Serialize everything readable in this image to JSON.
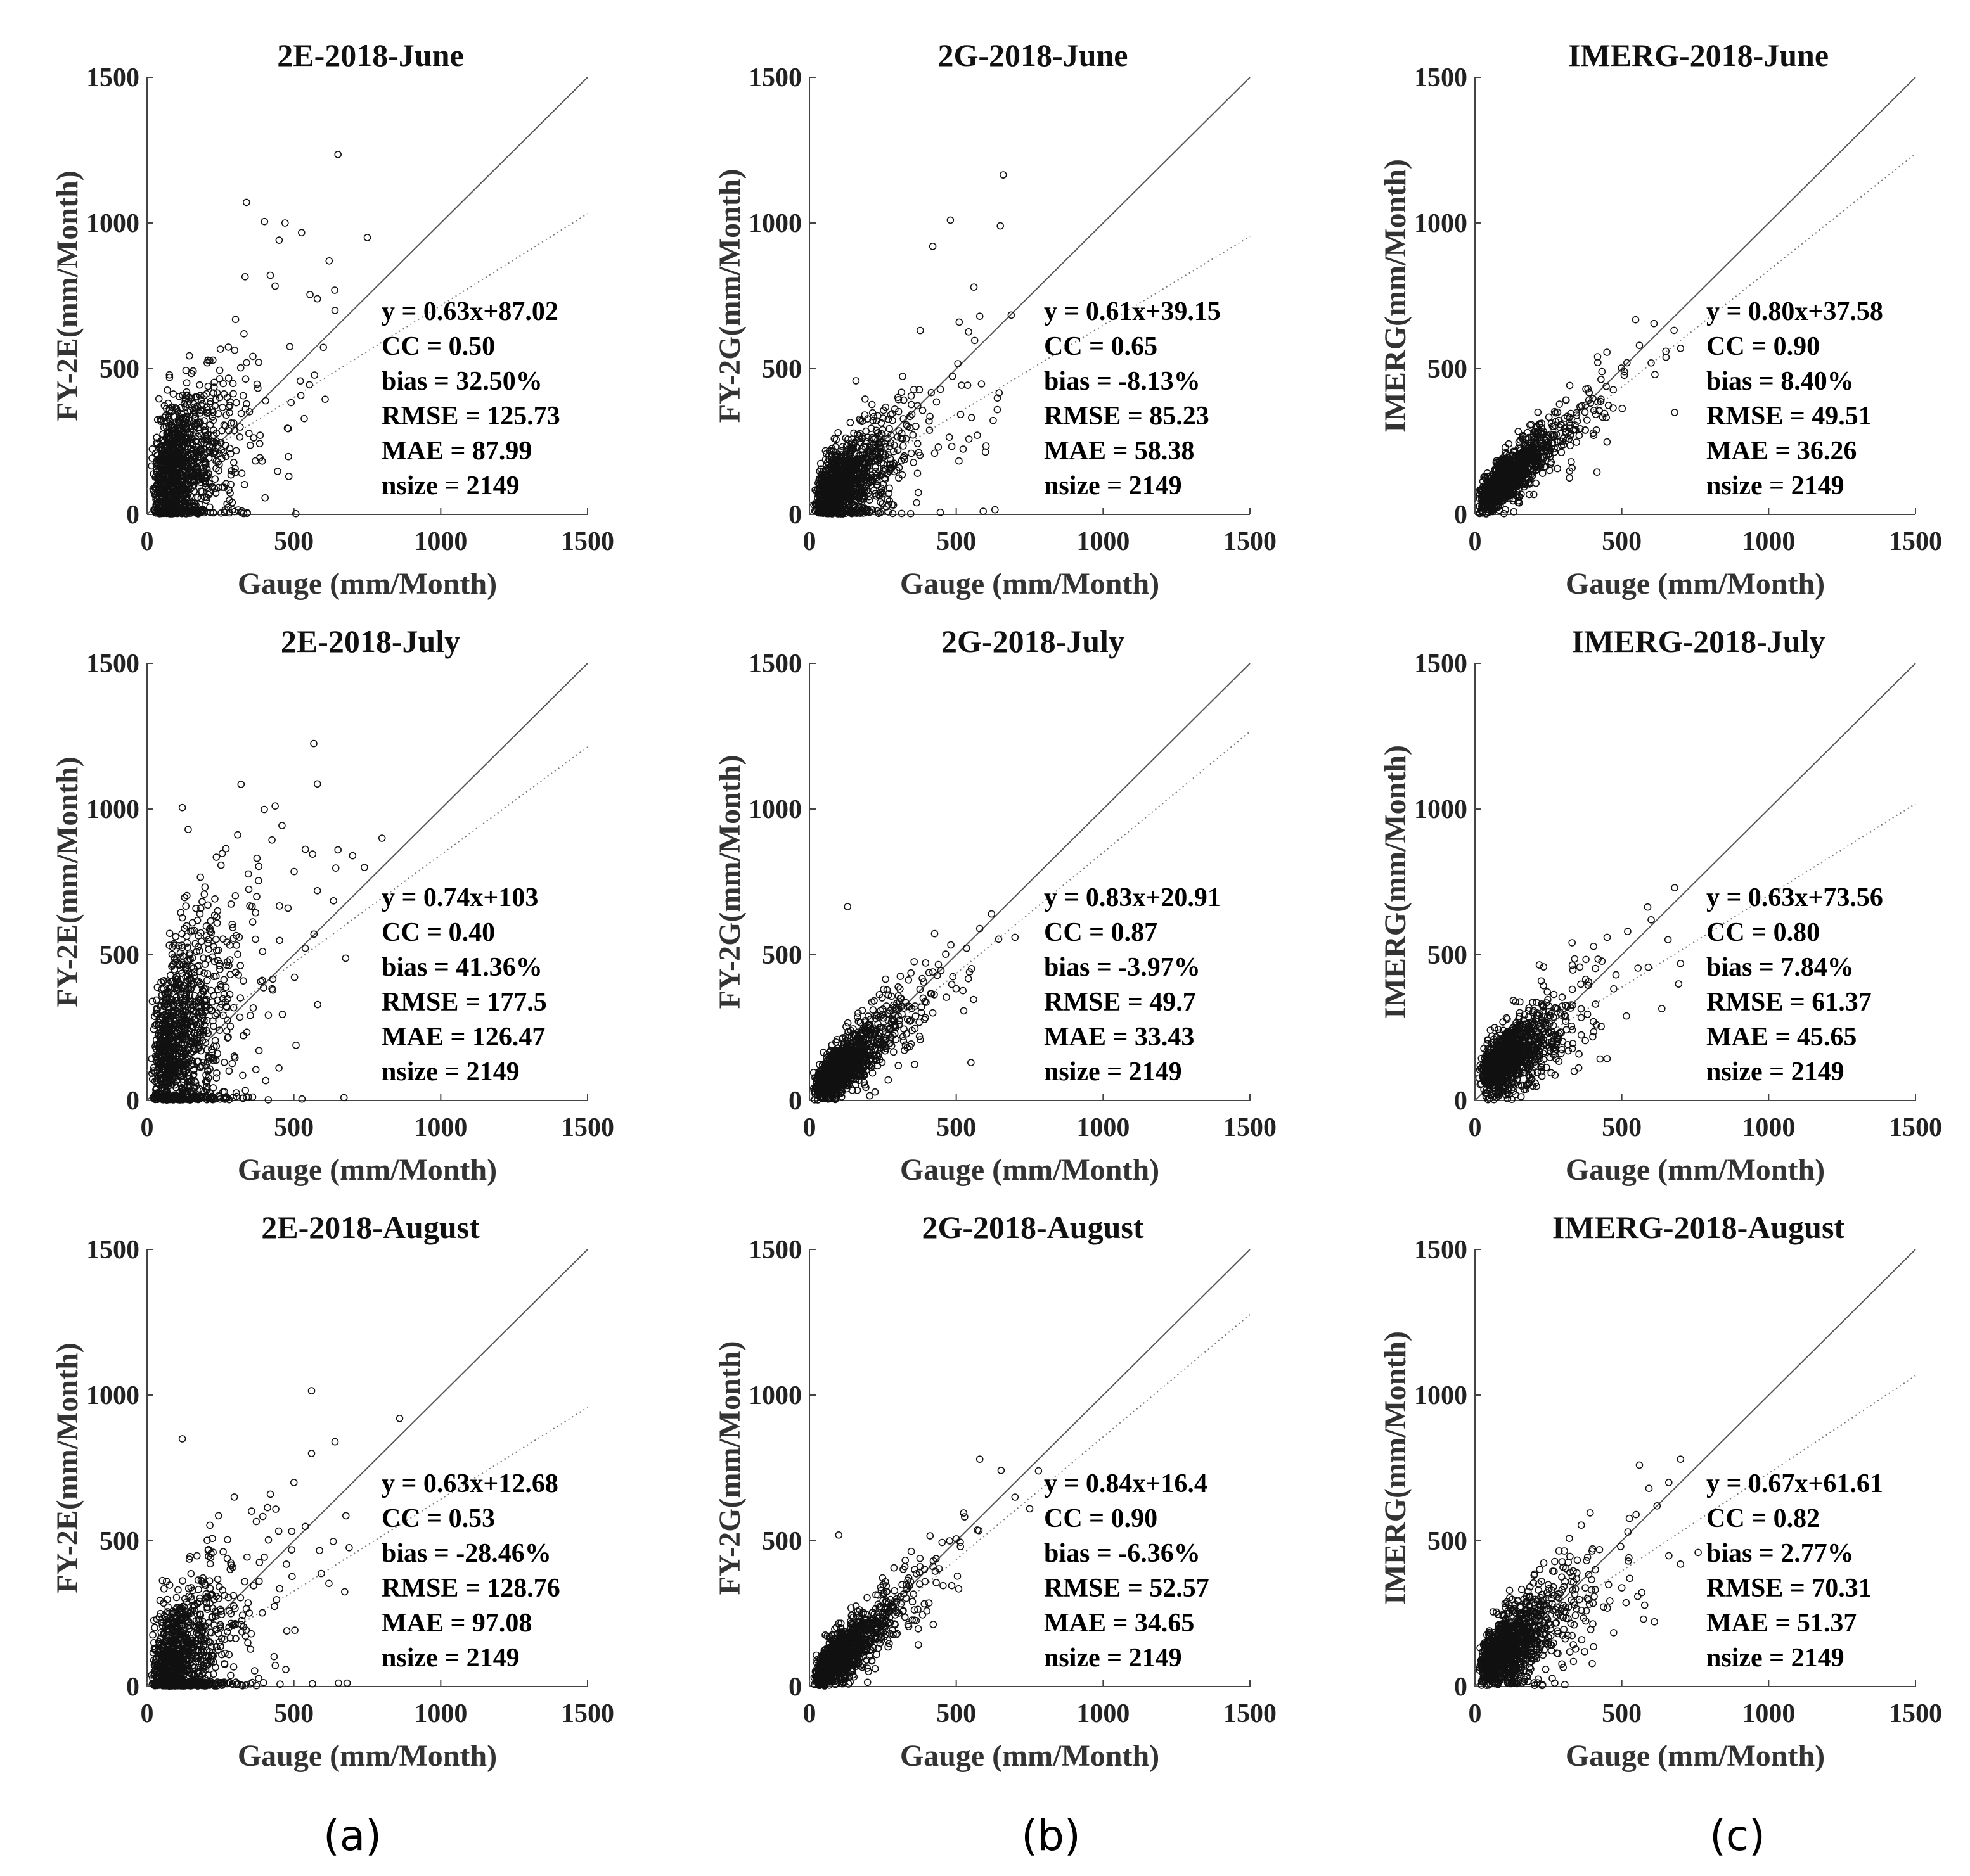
{
  "panel_labels": [
    "(a)",
    "(b)",
    "(c)"
  ],
  "chart_data": [
    {
      "type": "scatter",
      "title": "2E-2018-June",
      "xlabel": "Gauge (mm/Month)",
      "ylabel": "FY-2E(mm/Month)",
      "xlim": [
        0,
        1500
      ],
      "ylim": [
        0,
        1500
      ],
      "xticks": [
        "0",
        "500",
        "1000",
        "1500"
      ],
      "yticks": [
        "0",
        "500",
        "1000",
        "1500"
      ],
      "slope": 0.63,
      "intercept": 87.02,
      "cc": 0.5,
      "spread": 130,
      "stats": [
        "y = 0.63x+87.02",
        "CC = 0.50",
        "bias = 32.50%",
        "RMSE = 125.73",
        "MAE = 87.99",
        "nsize = 2149"
      ],
      "outliers": [
        [
          650,
          1235
        ],
        [
          400,
          1005
        ],
        [
          470,
          1000
        ],
        [
          750,
          950
        ],
        [
          620,
          870
        ],
        [
          580,
          740
        ],
        [
          640,
          700
        ],
        [
          330,
          620
        ]
      ]
    },
    {
      "type": "scatter",
      "title": "2G-2018-June",
      "xlabel": "Gauge (mm/Month)",
      "ylabel": "FY-2G(mm/Month)",
      "xlim": [
        0,
        1500
      ],
      "ylim": [
        0,
        1500
      ],
      "xticks": [
        "0",
        "500",
        "1000",
        "1500"
      ],
      "yticks": [
        "0",
        "500",
        "1000",
        "1500"
      ],
      "slope": 0.61,
      "intercept": 39.15,
      "cc": 0.65,
      "spread": 75,
      "stats": [
        "y = 0.61x+39.15",
        "CC = 0.65",
        "bias = -8.13%",
        "RMSE = 85.23",
        "MAE = 58.38",
        "nsize = 2149"
      ],
      "outliers": [
        [
          660,
          1165
        ],
        [
          480,
          1010
        ],
        [
          420,
          920
        ],
        [
          650,
          990
        ],
        [
          580,
          680
        ],
        [
          510,
          660
        ],
        [
          560,
          780
        ]
      ]
    },
    {
      "type": "scatter",
      "title": "IMERG-2018-June",
      "xlabel": "Gauge (mm/Month)",
      "ylabel": "IMERG(mm/Month)",
      "xlim": [
        0,
        1500
      ],
      "ylim": [
        0,
        1500
      ],
      "xticks": [
        "0",
        "500",
        "1000",
        "1500"
      ],
      "yticks": [
        "0",
        "500",
        "1000",
        "1500"
      ],
      "slope": 0.8,
      "intercept": 37.58,
      "cc": 0.9,
      "spread": 40,
      "stats": [
        "y = 0.80x+37.58",
        "CC = 0.90",
        "bias = 8.40%",
        "RMSE = 49.51",
        "MAE = 36.26",
        "nsize = 2149"
      ],
      "outliers": [
        [
          700,
          570
        ],
        [
          650,
          560
        ],
        [
          600,
          520
        ],
        [
          560,
          580
        ],
        [
          680,
          350
        ]
      ]
    },
    {
      "type": "scatter",
      "title": "2E-2018-July",
      "xlabel": "Gauge (mm/Month)",
      "ylabel": "FY-2E(mm/Month)",
      "xlim": [
        0,
        1500
      ],
      "ylim": [
        0,
        1500
      ],
      "xticks": [
        "0",
        "500",
        "1000",
        "1500"
      ],
      "yticks": [
        "0",
        "500",
        "1000",
        "1500"
      ],
      "slope": 0.74,
      "intercept": 103,
      "cc": 0.4,
      "spread": 175,
      "stats": [
        "y = 0.74x+103",
        "CC = 0.40",
        "bias = 41.36%",
        "RMSE = 177.5",
        "MAE = 126.47",
        "nsize = 2149"
      ],
      "outliers": [
        [
          320,
          1085
        ],
        [
          120,
          1005
        ],
        [
          140,
          930
        ],
        [
          800,
          900
        ],
        [
          700,
          840
        ],
        [
          650,
          860
        ],
        [
          580,
          720
        ],
        [
          480,
          660
        ],
        [
          740,
          800
        ]
      ]
    },
    {
      "type": "scatter",
      "title": "2G-2018-July",
      "xlabel": "Gauge (mm/Month)",
      "ylabel": "FY-2G(mm/Month)",
      "xlim": [
        0,
        1500
      ],
      "ylim": [
        0,
        1500
      ],
      "xticks": [
        "0",
        "500",
        "1000",
        "1500"
      ],
      "yticks": [
        "0",
        "500",
        "1000",
        "1500"
      ],
      "slope": 0.83,
      "intercept": 20.91,
      "cc": 0.87,
      "spread": 45,
      "stats": [
        "y = 0.83x+20.91",
        "CC = 0.87",
        "bias = -3.97%",
        "RMSE = 49.7",
        "MAE = 33.43",
        "nsize = 2149"
      ],
      "outliers": [
        [
          130,
          665
        ],
        [
          620,
          640
        ],
        [
          580,
          590
        ],
        [
          700,
          560
        ],
        [
          550,
          130
        ]
      ]
    },
    {
      "type": "scatter",
      "title": "IMERG-2018-July",
      "xlabel": "Gauge (mm/Month)",
      "ylabel": "IMERG(mm/Month)",
      "xlim": [
        0,
        1500
      ],
      "ylim": [
        0,
        1500
      ],
      "xticks": [
        "0",
        "500",
        "1000",
        "1500"
      ],
      "yticks": [
        "0",
        "500",
        "1000",
        "1500"
      ],
      "slope": 0.63,
      "intercept": 73.56,
      "cc": 0.8,
      "spread": 55,
      "stats": [
        "y = 0.63x+73.56",
        "CC = 0.80",
        "bias = 7.84%",
        "RMSE = 61.37",
        "MAE = 45.65",
        "nsize = 2149"
      ],
      "outliers": [
        [
          680,
          730
        ],
        [
          600,
          620
        ],
        [
          520,
          580
        ],
        [
          700,
          470
        ],
        [
          450,
          560
        ]
      ]
    },
    {
      "type": "scatter",
      "title": "2E-2018-August",
      "xlabel": "Gauge (mm/Month)",
      "ylabel": "FY-2E(mm/Month)",
      "xlim": [
        0,
        1500
      ],
      "ylim": [
        0,
        1500
      ],
      "xticks": [
        "0",
        "500",
        "1000",
        "1500"
      ],
      "yticks": [
        "0",
        "500",
        "1000",
        "1500"
      ],
      "slope": 0.63,
      "intercept": 12.68,
      "cc": 0.53,
      "spread": 120,
      "stats": [
        "y = 0.63x+12.68",
        "CC = 0.53",
        "bias = -28.46%",
        "RMSE = 128.76",
        "MAE = 97.08",
        "nsize = 2149"
      ],
      "outliers": [
        [
          560,
          1015
        ],
        [
          860,
          920
        ],
        [
          120,
          850
        ],
        [
          640,
          840
        ],
        [
          560,
          800
        ],
        [
          500,
          700
        ],
        [
          420,
          660
        ]
      ]
    },
    {
      "type": "scatter",
      "title": "2G-2018-August",
      "xlabel": "Gauge (mm/Month)",
      "ylabel": "FY-2G(mm/Month)",
      "xlim": [
        0,
        1500
      ],
      "ylim": [
        0,
        1500
      ],
      "xticks": [
        "0",
        "500",
        "1000",
        "1500"
      ],
      "yticks": [
        "0",
        "500",
        "1000",
        "1500"
      ],
      "slope": 0.84,
      "intercept": 16.4,
      "cc": 0.9,
      "spread": 45,
      "stats": [
        "y = 0.84x+16.4",
        "CC = 0.90",
        "bias = -6.36%",
        "RMSE = 52.57",
        "MAE = 34.65",
        "nsize = 2149"
      ],
      "outliers": [
        [
          100,
          520
        ],
        [
          580,
          780
        ],
        [
          780,
          740
        ],
        [
          700,
          650
        ],
        [
          750,
          610
        ]
      ]
    },
    {
      "type": "scatter",
      "title": "IMERG-2018-August",
      "xlabel": "Gauge (mm/Month)",
      "ylabel": "IMERG(mm/Month)",
      "xlim": [
        0,
        1500
      ],
      "ylim": [
        0,
        1500
      ],
      "xticks": [
        "0",
        "500",
        "1000",
        "1500"
      ],
      "yticks": [
        "0",
        "500",
        "1000",
        "1500"
      ],
      "slope": 0.67,
      "intercept": 61.61,
      "cc": 0.82,
      "spread": 65,
      "stats": [
        "y = 0.67x+61.61",
        "CC = 0.82",
        "bias = 2.77%",
        "RMSE = 70.31",
        "MAE = 51.37",
        "nsize = 2149"
      ],
      "outliers": [
        [
          700,
          780
        ],
        [
          660,
          700
        ],
        [
          560,
          760
        ],
        [
          620,
          620
        ],
        [
          760,
          460
        ],
        [
          700,
          420
        ]
      ]
    }
  ]
}
